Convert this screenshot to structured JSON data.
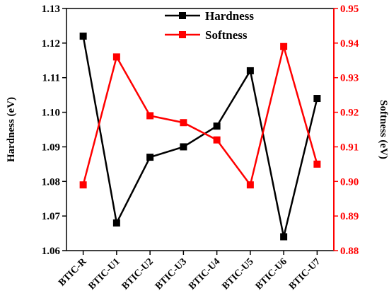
{
  "chart_data": {
    "type": "line",
    "categories": [
      "BTIC-R",
      "BTIC-U1",
      "BTIC-U2",
      "BTIC-U3",
      "BTIC-U4",
      "BTIC-U5",
      "BTIC-U6",
      "BTIC-U7"
    ],
    "series": [
      {
        "name": "Hardness",
        "axis": "left",
        "color": "#000000",
        "marker": "square",
        "values": [
          1.122,
          1.068,
          1.087,
          1.09,
          1.096,
          1.112,
          1.064,
          1.104
        ]
      },
      {
        "name": "Softness",
        "axis": "right",
        "color": "#ff0000",
        "marker": "square",
        "values": [
          0.899,
          0.936,
          0.919,
          0.917,
          0.912,
          0.899,
          0.939,
          0.905
        ]
      }
    ],
    "ylabel": "Hardness (eV)",
    "ylabel_right": "Softness (eV)",
    "ylim": [
      1.06,
      1.13
    ],
    "ylim_right": [
      0.88,
      0.95
    ],
    "yticks": [
      "1.06",
      "1.07",
      "1.08",
      "1.09",
      "1.10",
      "1.11",
      "1.12",
      "1.13"
    ],
    "yticks_right": [
      "0.88",
      "0.89",
      "0.90",
      "0.91",
      "0.92",
      "0.93",
      "0.94",
      "0.95"
    ],
    "legend_position": "top-center",
    "grid": false
  }
}
